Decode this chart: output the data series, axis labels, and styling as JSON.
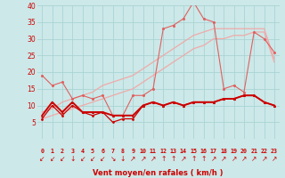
{
  "x": [
    0,
    1,
    2,
    3,
    4,
    5,
    6,
    7,
    8,
    9,
    10,
    11,
    12,
    13,
    14,
    15,
    16,
    17,
    18,
    19,
    20,
    21,
    22,
    23
  ],
  "mean_wind": [
    6,
    10,
    7,
    10,
    8,
    7,
    8,
    5,
    6,
    6,
    10,
    11,
    10,
    11,
    10,
    11,
    11,
    11,
    12,
    12,
    13,
    13,
    11,
    10
  ],
  "mean_wind2": [
    7,
    11,
    8,
    11,
    8,
    8,
    8,
    7,
    7,
    7,
    10,
    11,
    10,
    11,
    10,
    11,
    11,
    11,
    12,
    12,
    13,
    13,
    11,
    10
  ],
  "gusts": [
    19,
    16,
    17,
    12,
    13,
    12,
    13,
    7,
    7,
    13,
    13,
    15,
    33,
    34,
    36,
    41,
    36,
    35,
    15,
    16,
    14,
    32,
    30,
    26
  ],
  "trend1": [
    6,
    7,
    8,
    9,
    10,
    11,
    12,
    13,
    14,
    15,
    17,
    19,
    21,
    23,
    25,
    27,
    28,
    30,
    30,
    31,
    31,
    32,
    32,
    23
  ],
  "trend2": [
    8,
    9,
    11,
    12,
    13,
    14,
    16,
    17,
    18,
    19,
    21,
    23,
    25,
    27,
    29,
    31,
    32,
    33,
    33,
    33,
    33,
    33,
    33,
    24
  ],
  "xlabel": "Vent moyen/en rafales ( km/h )",
  "ylim": [
    0,
    40
  ],
  "bg_color": "#cce8e8",
  "grid_color": "#aad4d4",
  "dark_red": "#cc0000",
  "mid_red": "#e06060",
  "light_red": "#f0aaaa",
  "ytick_labels": [
    "",
    "5",
    "10",
    "15",
    "20",
    "25",
    "30",
    "35",
    "40"
  ],
  "ytick_vals": [
    0,
    5,
    10,
    15,
    20,
    25,
    30,
    35,
    40
  ],
  "arrow_symbols": [
    "↙",
    "↙",
    "↙",
    "↓",
    "↙",
    "↙",
    "↙",
    "↘",
    "↓",
    "↗",
    "↗",
    "↗",
    "↑",
    "↑",
    "↗",
    "↑",
    "↑",
    "↗",
    "↗",
    "↗",
    "↗",
    "↗",
    "↗",
    "↗"
  ]
}
